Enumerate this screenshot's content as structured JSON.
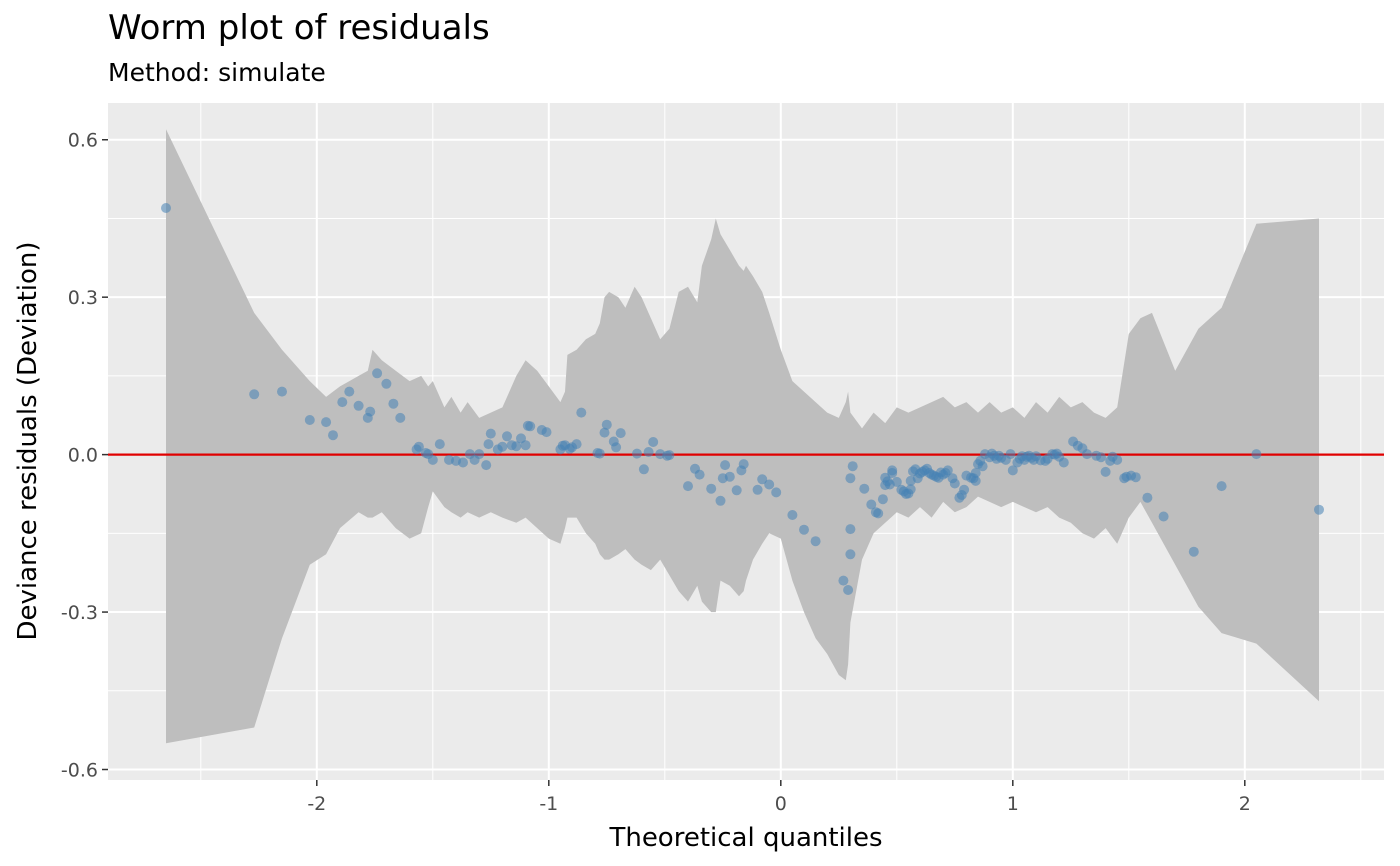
{
  "chart_data": {
    "type": "scatter",
    "title": "Worm plot of residuals",
    "subtitle": "Method: simulate",
    "xlabel": "Theoretical quantiles",
    "ylabel": "Deviance residuals (Deviation)",
    "xlim": [
      -2.9,
      2.6
    ],
    "ylim": [
      -0.62,
      0.67
    ],
    "x_ticks": [
      -2,
      -1,
      0,
      1,
      2
    ],
    "x_tick_labels": [
      "-2",
      "-1",
      "0",
      "1",
      "2"
    ],
    "y_ticks": [
      -0.6,
      -0.3,
      0.0,
      0.3,
      0.6
    ],
    "y_tick_labels": [
      "-0.6",
      "-0.3",
      "0.0",
      "0.3",
      "0.6"
    ],
    "grid": true,
    "reference_line": {
      "y": 0.0,
      "color": "#e00000"
    },
    "point_color": "#4682b4",
    "band_color": "#bebebe",
    "band": {
      "x": [
        -2.65,
        -2.27,
        -2.15,
        -2.03,
        -1.96,
        -1.9,
        -1.82,
        -1.78,
        -1.76,
        -1.72,
        -1.66,
        -1.6,
        -1.55,
        -1.52,
        -1.5,
        -1.45,
        -1.42,
        -1.38,
        -1.35,
        -1.3,
        -1.25,
        -1.2,
        -1.14,
        -1.1,
        -1.05,
        -1.0,
        -0.95,
        -0.93,
        -0.92,
        -0.88,
        -0.84,
        -0.8,
        -0.78,
        -0.76,
        -0.74,
        -0.7,
        -0.67,
        -0.63,
        -0.6,
        -0.56,
        -0.52,
        -0.48,
        -0.44,
        -0.4,
        -0.36,
        -0.34,
        -0.3,
        -0.28,
        -0.26,
        -0.22,
        -0.18,
        -0.16,
        -0.15,
        -0.12,
        -0.08,
        -0.05,
        0.0,
        0.05,
        0.1,
        0.15,
        0.2,
        0.25,
        0.28,
        0.29,
        0.3,
        0.35,
        0.4,
        0.45,
        0.5,
        0.55,
        0.6,
        0.65,
        0.7,
        0.75,
        0.8,
        0.85,
        0.9,
        0.95,
        1.0,
        1.05,
        1.1,
        1.15,
        1.2,
        1.25,
        1.3,
        1.35,
        1.4,
        1.45,
        1.5,
        1.55,
        1.6,
        1.7,
        1.8,
        1.9,
        2.05,
        2.32
      ],
      "lower": [
        -0.55,
        -0.52,
        -0.35,
        -0.21,
        -0.19,
        -0.14,
        -0.11,
        -0.12,
        -0.12,
        -0.11,
        -0.14,
        -0.16,
        -0.15,
        -0.1,
        -0.07,
        -0.1,
        -0.11,
        -0.12,
        -0.11,
        -0.12,
        -0.11,
        -0.12,
        -0.13,
        -0.12,
        -0.14,
        -0.16,
        -0.17,
        -0.14,
        -0.12,
        -0.12,
        -0.15,
        -0.17,
        -0.19,
        -0.2,
        -0.2,
        -0.19,
        -0.18,
        -0.2,
        -0.21,
        -0.22,
        -0.2,
        -0.23,
        -0.26,
        -0.28,
        -0.25,
        -0.28,
        -0.3,
        -0.3,
        -0.24,
        -0.25,
        -0.27,
        -0.26,
        -0.24,
        -0.2,
        -0.17,
        -0.15,
        -0.16,
        -0.24,
        -0.3,
        -0.35,
        -0.38,
        -0.42,
        -0.43,
        -0.4,
        -0.32,
        -0.2,
        -0.15,
        -0.13,
        -0.11,
        -0.12,
        -0.1,
        -0.12,
        -0.09,
        -0.11,
        -0.1,
        -0.08,
        -0.09,
        -0.1,
        -0.09,
        -0.1,
        -0.11,
        -0.1,
        -0.12,
        -0.13,
        -0.15,
        -0.16,
        -0.14,
        -0.17,
        -0.12,
        -0.09,
        -0.13,
        -0.21,
        -0.29,
        -0.34,
        -0.36,
        -0.47
      ],
      "upper": [
        0.62,
        0.27,
        0.2,
        0.14,
        0.11,
        0.13,
        0.15,
        0.16,
        0.2,
        0.18,
        0.16,
        0.14,
        0.15,
        0.13,
        0.14,
        0.09,
        0.11,
        0.08,
        0.1,
        0.07,
        0.08,
        0.09,
        0.15,
        0.18,
        0.16,
        0.13,
        0.1,
        0.12,
        0.19,
        0.2,
        0.22,
        0.23,
        0.25,
        0.3,
        0.31,
        0.3,
        0.28,
        0.32,
        0.3,
        0.26,
        0.22,
        0.24,
        0.31,
        0.32,
        0.29,
        0.36,
        0.41,
        0.45,
        0.42,
        0.39,
        0.36,
        0.35,
        0.36,
        0.34,
        0.31,
        0.27,
        0.2,
        0.14,
        0.12,
        0.1,
        0.08,
        0.07,
        0.1,
        0.12,
        0.08,
        0.05,
        0.08,
        0.06,
        0.09,
        0.08,
        0.09,
        0.1,
        0.11,
        0.09,
        0.1,
        0.08,
        0.1,
        0.08,
        0.09,
        0.07,
        0.1,
        0.08,
        0.11,
        0.09,
        0.1,
        0.08,
        0.07,
        0.09,
        0.23,
        0.26,
        0.27,
        0.16,
        0.24,
        0.28,
        0.44,
        0.45
      ]
    },
    "points": [
      [
        -2.65,
        0.47
      ],
      [
        -2.27,
        0.115
      ],
      [
        -2.15,
        0.12
      ],
      [
        -2.03,
        0.066
      ],
      [
        -1.96,
        0.062
      ],
      [
        -1.93,
        0.037
      ],
      [
        -1.89,
        0.1
      ],
      [
        -1.86,
        0.12
      ],
      [
        -1.82,
        0.093
      ],
      [
        -1.78,
        0.07
      ],
      [
        -1.77,
        0.082
      ],
      [
        -1.74,
        0.155
      ],
      [
        -1.7,
        0.135
      ],
      [
        -1.67,
        0.097
      ],
      [
        -1.64,
        0.07
      ],
      [
        -1.57,
        0.01
      ],
      [
        -1.56,
        0.015
      ],
      [
        -1.53,
        0.003
      ],
      [
        -1.52,
        0.001
      ],
      [
        -1.5,
        -0.01
      ],
      [
        -1.47,
        0.02
      ],
      [
        -1.43,
        -0.01
      ],
      [
        -1.4,
        -0.012
      ],
      [
        -1.37,
        -0.015
      ],
      [
        -1.34,
        0.001
      ],
      [
        -1.32,
        -0.01
      ],
      [
        -1.3,
        0.001
      ],
      [
        -1.27,
        -0.02
      ],
      [
        -1.26,
        0.02
      ],
      [
        -1.25,
        0.04
      ],
      [
        -1.22,
        0.01
      ],
      [
        -1.2,
        0.015
      ],
      [
        -1.18,
        0.035
      ],
      [
        -1.16,
        0.018
      ],
      [
        -1.14,
        0.016
      ],
      [
        -1.12,
        0.031
      ],
      [
        -1.1,
        0.018
      ],
      [
        -1.09,
        0.055
      ],
      [
        -1.08,
        0.054
      ],
      [
        -1.03,
        0.047
      ],
      [
        -1.01,
        0.043
      ],
      [
        -0.95,
        0.01
      ],
      [
        -0.94,
        0.017
      ],
      [
        -0.93,
        0.018
      ],
      [
        -0.91,
        0.011
      ],
      [
        -0.9,
        0.014
      ],
      [
        -0.88,
        0.02
      ],
      [
        -0.86,
        0.08
      ],
      [
        -0.79,
        0.003
      ],
      [
        -0.78,
        0.002
      ],
      [
        -0.76,
        0.042
      ],
      [
        -0.75,
        0.057
      ],
      [
        -0.72,
        0.025
      ],
      [
        -0.71,
        0.014
      ],
      [
        -0.69,
        0.041
      ],
      [
        -0.62,
        0.002
      ],
      [
        -0.59,
        -0.028
      ],
      [
        -0.57,
        0.005
      ],
      [
        -0.55,
        0.024
      ],
      [
        -0.52,
        0.001
      ],
      [
        -0.49,
        -0.002
      ],
      [
        -0.48,
        -0.001
      ],
      [
        -0.4,
        -0.06
      ],
      [
        -0.37,
        -0.027
      ],
      [
        -0.35,
        -0.038
      ],
      [
        -0.3,
        -0.065
      ],
      [
        -0.26,
        -0.088
      ],
      [
        -0.25,
        -0.045
      ],
      [
        -0.24,
        -0.02
      ],
      [
        -0.22,
        -0.042
      ],
      [
        -0.19,
        -0.068
      ],
      [
        -0.17,
        -0.03
      ],
      [
        -0.16,
        -0.018
      ],
      [
        -0.1,
        -0.067
      ],
      [
        -0.08,
        -0.047
      ],
      [
        -0.05,
        -0.057
      ],
      [
        -0.02,
        -0.072
      ],
      [
        0.05,
        -0.115
      ],
      [
        0.1,
        -0.143
      ],
      [
        0.15,
        -0.165
      ],
      [
        0.27,
        -0.24
      ],
      [
        0.29,
        -0.258
      ],
      [
        0.3,
        -0.142
      ],
      [
        0.3,
        -0.19
      ],
      [
        0.3,
        -0.045
      ],
      [
        0.31,
        -0.022
      ],
      [
        0.36,
        -0.065
      ],
      [
        0.39,
        -0.095
      ],
      [
        0.41,
        -0.11
      ],
      [
        0.42,
        -0.112
      ],
      [
        0.44,
        -0.085
      ],
      [
        0.45,
        -0.058
      ],
      [
        0.45,
        -0.044
      ],
      [
        0.46,
        -0.051
      ],
      [
        0.47,
        -0.057
      ],
      [
        0.48,
        -0.035
      ],
      [
        0.48,
        -0.03
      ],
      [
        0.5,
        -0.052
      ],
      [
        0.52,
        -0.067
      ],
      [
        0.53,
        -0.07
      ],
      [
        0.54,
        -0.075
      ],
      [
        0.55,
        -0.074
      ],
      [
        0.56,
        -0.066
      ],
      [
        0.56,
        -0.05
      ],
      [
        0.57,
        -0.032
      ],
      [
        0.58,
        -0.028
      ],
      [
        0.59,
        -0.045
      ],
      [
        0.6,
        -0.036
      ],
      [
        0.61,
        -0.033
      ],
      [
        0.62,
        -0.03
      ],
      [
        0.63,
        -0.027
      ],
      [
        0.64,
        -0.035
      ],
      [
        0.65,
        -0.038
      ],
      [
        0.66,
        -0.04
      ],
      [
        0.67,
        -0.042
      ],
      [
        0.68,
        -0.044
      ],
      [
        0.69,
        -0.034
      ],
      [
        0.7,
        -0.038
      ],
      [
        0.71,
        -0.035
      ],
      [
        0.72,
        -0.03
      ],
      [
        0.74,
        -0.045
      ],
      [
        0.75,
        -0.055
      ],
      [
        0.77,
        -0.082
      ],
      [
        0.78,
        -0.077
      ],
      [
        0.79,
        -0.067
      ],
      [
        0.8,
        -0.04
      ],
      [
        0.82,
        -0.044
      ],
      [
        0.83,
        -0.045
      ],
      [
        0.84,
        -0.035
      ],
      [
        0.84,
        -0.05
      ],
      [
        0.85,
        -0.018
      ],
      [
        0.86,
        -0.012
      ],
      [
        0.87,
        -0.022
      ],
      [
        0.88,
        0.001
      ],
      [
        0.9,
        -0.005
      ],
      [
        0.91,
        0.002
      ],
      [
        0.92,
        -0.002
      ],
      [
        0.93,
        -0.008
      ],
      [
        0.94,
        -0.002
      ],
      [
        0.95,
        -0.006
      ],
      [
        0.97,
        -0.01
      ],
      [
        0.99,
        0.001
      ],
      [
        1.0,
        -0.03
      ],
      [
        1.02,
        -0.015
      ],
      [
        1.03,
        -0.008
      ],
      [
        1.04,
        -0.003
      ],
      [
        1.05,
        -0.01
      ],
      [
        1.06,
        -0.004
      ],
      [
        1.07,
        -0.002
      ],
      [
        1.08,
        -0.006
      ],
      [
        1.09,
        -0.01
      ],
      [
        1.1,
        -0.003
      ],
      [
        1.12,
        -0.011
      ],
      [
        1.14,
        -0.012
      ],
      [
        1.15,
        -0.008
      ],
      [
        1.17,
        0.001
      ],
      [
        1.18,
        0.0
      ],
      [
        1.19,
        0.002
      ],
      [
        1.2,
        -0.004
      ],
      [
        1.22,
        -0.015
      ],
      [
        1.26,
        0.025
      ],
      [
        1.28,
        0.017
      ],
      [
        1.3,
        0.012
      ],
      [
        1.32,
        0.001
      ],
      [
        1.36,
        -0.002
      ],
      [
        1.38,
        -0.005
      ],
      [
        1.4,
        -0.033
      ],
      [
        1.42,
        -0.012
      ],
      [
        1.43,
        -0.004
      ],
      [
        1.45,
        -0.01
      ],
      [
        1.48,
        -0.045
      ],
      [
        1.49,
        -0.042
      ],
      [
        1.51,
        -0.04
      ],
      [
        1.53,
        -0.043
      ],
      [
        1.58,
        -0.082
      ],
      [
        1.65,
        -0.118
      ],
      [
        1.78,
        -0.185
      ],
      [
        1.9,
        -0.06
      ],
      [
        2.05,
        0.001
      ],
      [
        2.32,
        -0.105
      ]
    ]
  }
}
